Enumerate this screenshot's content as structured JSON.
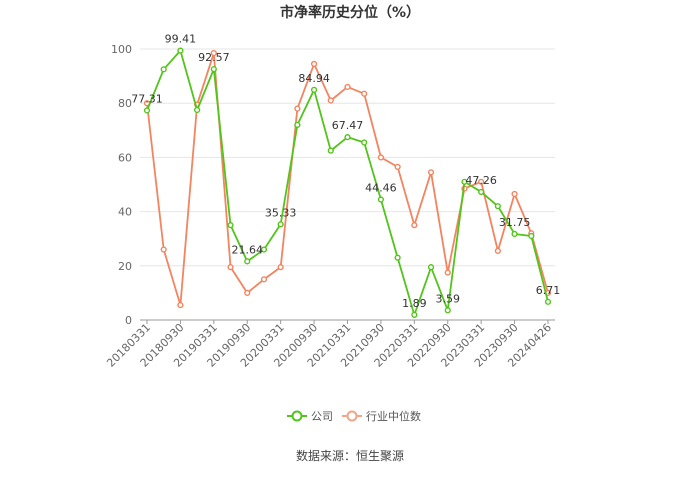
{
  "chart_data": {
    "type": "line",
    "title": "市净率历史分位（%）",
    "xlabel": "",
    "ylabel": "",
    "ylim": [
      0,
      100
    ],
    "yticks": [
      0,
      20,
      40,
      60,
      80,
      100
    ],
    "grid": "horizontal",
    "legend_position": "bottom-center",
    "x_tick_labels": [
      "20180331",
      "20180930",
      "20190331",
      "20190930",
      "20200331",
      "20200930",
      "20210331",
      "20210930",
      "20220331",
      "20220930",
      "20230331",
      "20230930",
      "20240426"
    ],
    "x": [
      "20180331",
      "20180630",
      "20180930",
      "20181231",
      "20190331",
      "20190630",
      "20190930",
      "20191231",
      "20200331",
      "20200630",
      "20200930",
      "20201231",
      "20210331",
      "20210630",
      "20210930",
      "20211231",
      "20220331",
      "20220630",
      "20220930",
      "20221231",
      "20230331",
      "20230630",
      "20230930",
      "20231231",
      "20240426"
    ],
    "series": [
      {
        "name": "公司",
        "color": "#52c41a",
        "values": [
          77.31,
          92.5,
          99.41,
          77.5,
          92.57,
          35.0,
          21.64,
          26.0,
          35.33,
          72.0,
          84.94,
          62.5,
          67.47,
          65.5,
          44.46,
          23.0,
          1.89,
          19.5,
          3.59,
          51.0,
          47.26,
          42.0,
          31.75,
          31.0,
          6.71
        ],
        "labels": {
          "0": "77.31",
          "2": "99.41",
          "4": "92.57",
          "6": "21.64",
          "8": "35.33",
          "10": "84.94",
          "12": "67.47",
          "14": "44.46",
          "16": "1.89",
          "18": "3.59",
          "20": "47.26",
          "22": "31.75",
          "24": "6.71"
        }
      },
      {
        "name": "行业中位数",
        "color": "#f4845f",
        "values": [
          80.0,
          26.0,
          5.5,
          79.5,
          98.5,
          19.5,
          10.0,
          15.0,
          19.5,
          78.0,
          94.5,
          81.0,
          86.0,
          83.5,
          60.0,
          56.5,
          35.0,
          54.5,
          17.5,
          48.5,
          51.0,
          25.5,
          46.5,
          32.0,
          10.0
        ],
        "labels": {}
      }
    ]
  },
  "legend": {
    "items": [
      "公司",
      "行业中位数"
    ]
  },
  "source": "数据来源：恒生聚源"
}
